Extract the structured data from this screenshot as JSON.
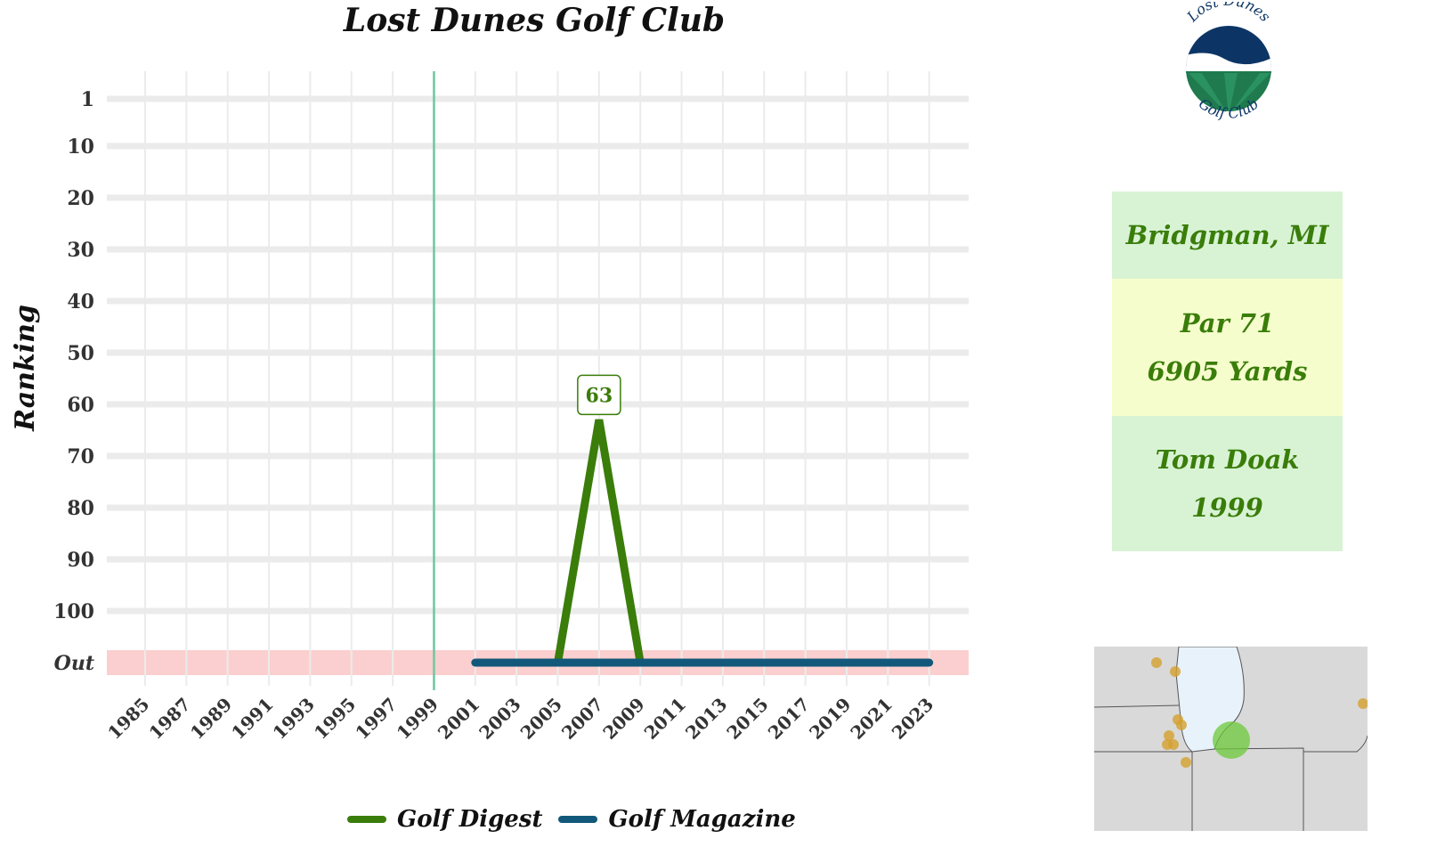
{
  "chart_data": {
    "type": "line",
    "title": "Lost Dunes Golf Club",
    "ylabel": "Ranking",
    "xlabel": "",
    "x_ticks": [
      "1985",
      "1987",
      "1989",
      "1991",
      "1993",
      "1995",
      "1997",
      "1999",
      "2001",
      "2003",
      "2005",
      "2007",
      "2009",
      "2011",
      "2013",
      "2015",
      "2017",
      "2019",
      "2021",
      "2023"
    ],
    "y_ticks": [
      "1",
      "10",
      "20",
      "30",
      "40",
      "50",
      "60",
      "70",
      "80",
      "90",
      "100",
      "Out"
    ],
    "xlim": [
      1984,
      2025
    ],
    "y_reversed": true,
    "out_band_label": "Out",
    "opened_year": 1999,
    "series": [
      {
        "name": "Golf Digest",
        "color": "#3a7d0a",
        "points": [
          {
            "x": 2005,
            "y": "Out"
          },
          {
            "x": 2007,
            "y": 63
          },
          {
            "x": 2009,
            "y": "Out"
          }
        ],
        "labels": [
          {
            "x": 2007,
            "y": 63,
            "text": "63"
          }
        ]
      },
      {
        "name": "Golf Magazine",
        "color": "#12587a",
        "points": [
          {
            "x": 2001,
            "y": "Out"
          },
          {
            "x": 2023,
            "y": "Out"
          }
        ]
      }
    ],
    "grid": true,
    "legend_position": "bottom"
  },
  "logo": {
    "top_text": "Lost Dunes",
    "bottom_text": "Golf Club"
  },
  "info": {
    "location": "Bridgman, MI",
    "par": "Par 71",
    "yards": "6905 Yards",
    "architect": "Tom Doak",
    "year": "1999"
  },
  "colors": {
    "digest": "#3a7d0a",
    "magazine": "#12587a",
    "out_band": "#fbcfcf",
    "opened_line": "#6cc8a0",
    "grid": "#ebebeb"
  }
}
